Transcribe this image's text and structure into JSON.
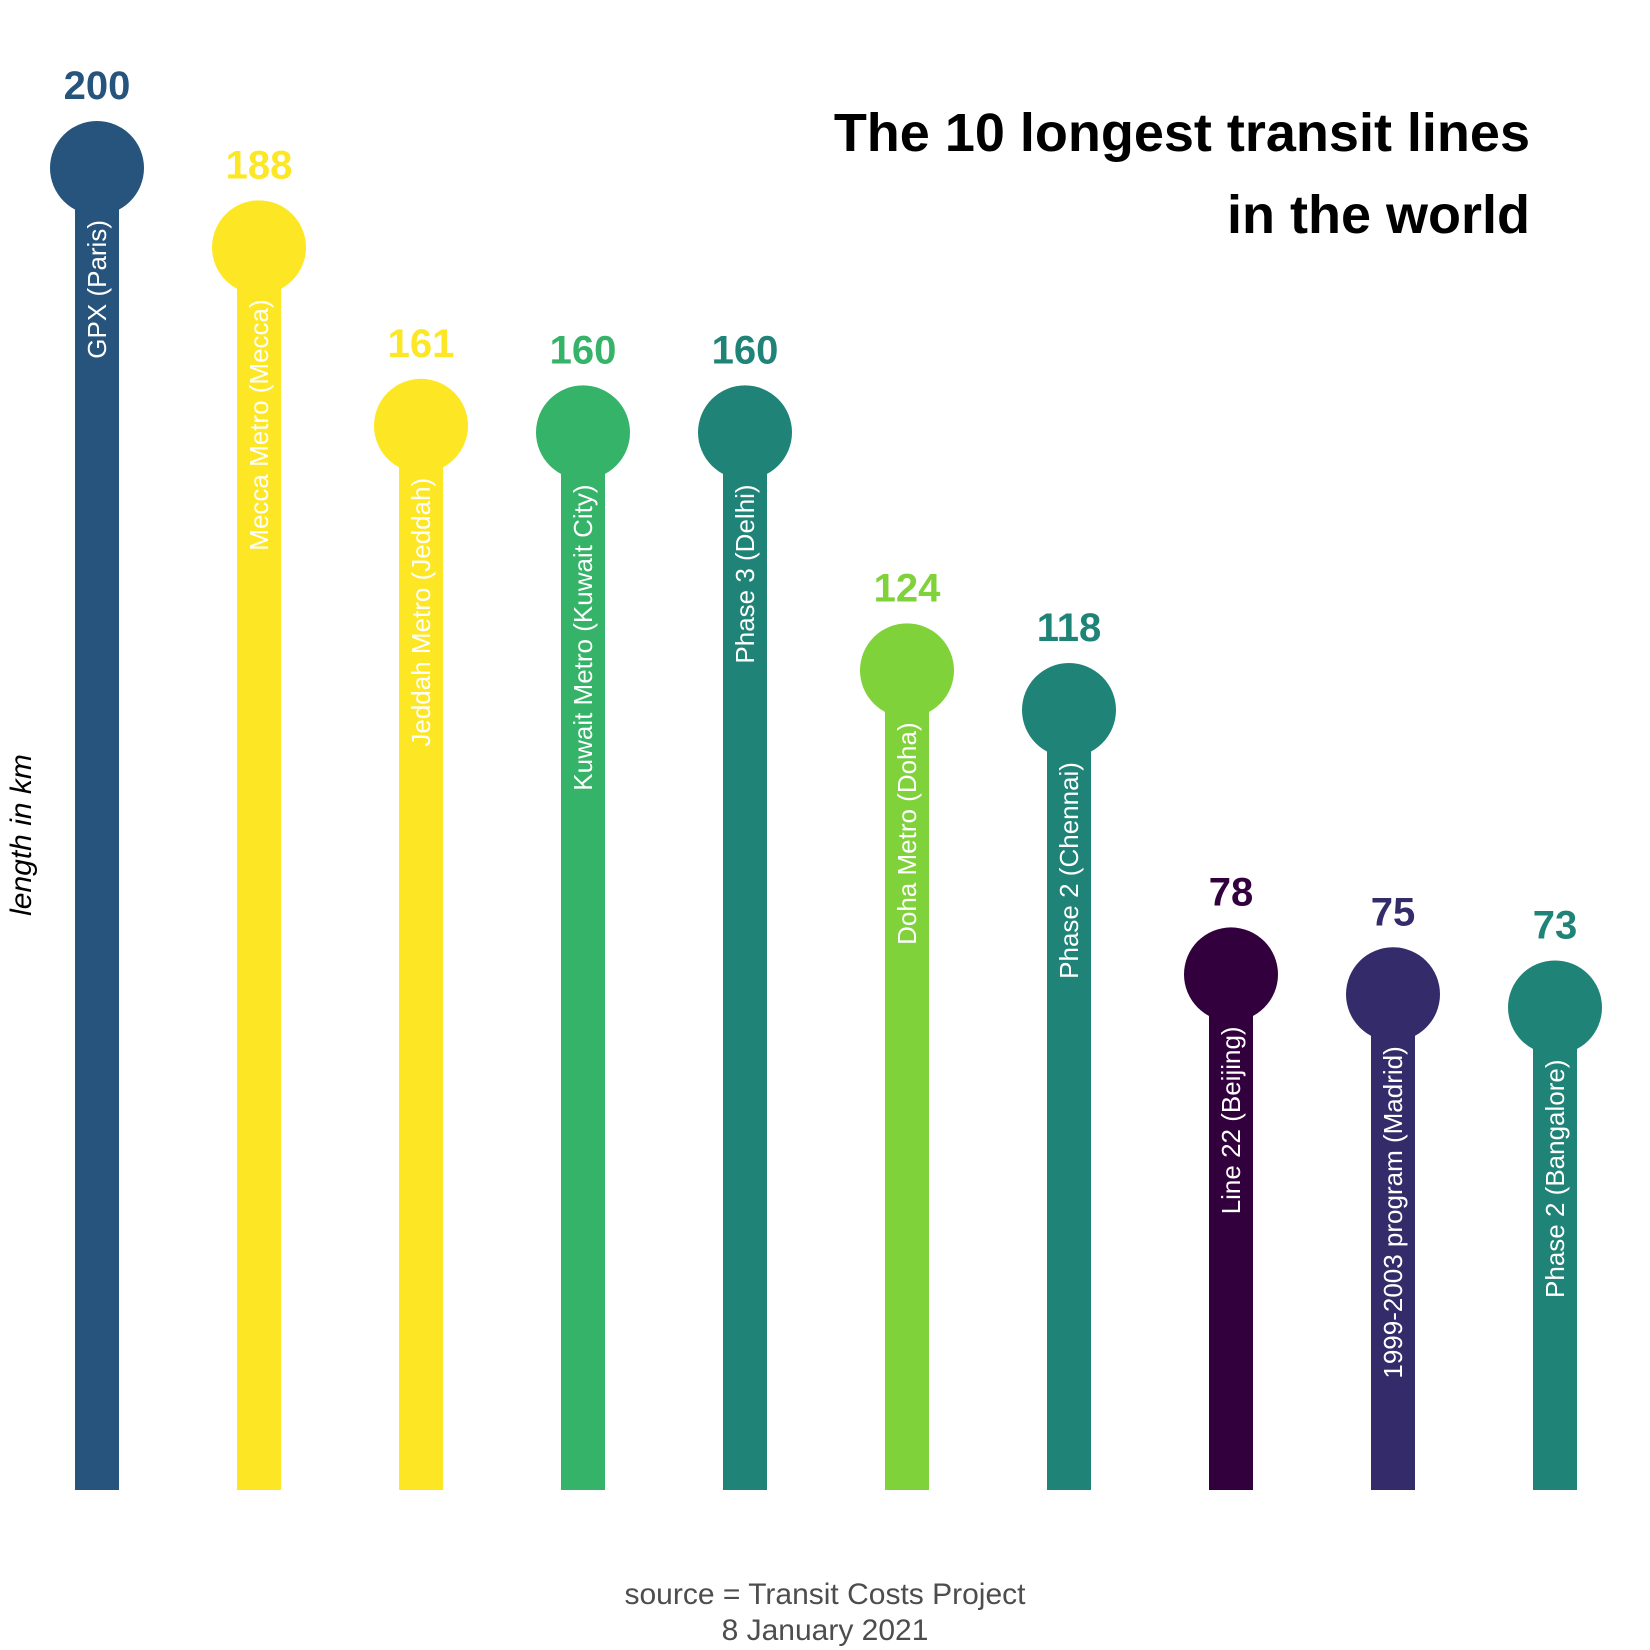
{
  "chart_data": {
    "type": "lollipop",
    "title_line1": "The 10 longest transit lines",
    "title_line2": "in the world",
    "ylabel": "length in km",
    "caption_line1": "source = Transit Costs Project",
    "caption_line2": "8 January 2021",
    "ylim": [
      0,
      200
    ],
    "categories": [
      "GPX (Paris)",
      "Mecca Metro (Mecca)",
      "Jeddah Metro (Jeddah)",
      "Kuwait Metro (Kuwait City)",
      "Phase 3 (Delhi)",
      "Doha Metro (Doha)",
      "Phase 2 (Chennai)",
      "Line 22 (Beijing)",
      "1999-2003 program (Madrid)",
      "Phase 2 (Bangalore)"
    ],
    "values": [
      200,
      188,
      161,
      160,
      160,
      124,
      118,
      78,
      75,
      73
    ],
    "colors": [
      "#26547c",
      "#fde725",
      "#fde725",
      "#35b368",
      "#1f8477",
      "#7fd23a",
      "#1f8477",
      "#33003e",
      "#342b6a",
      "#1f8477"
    ],
    "grid": false,
    "legend": "none"
  }
}
